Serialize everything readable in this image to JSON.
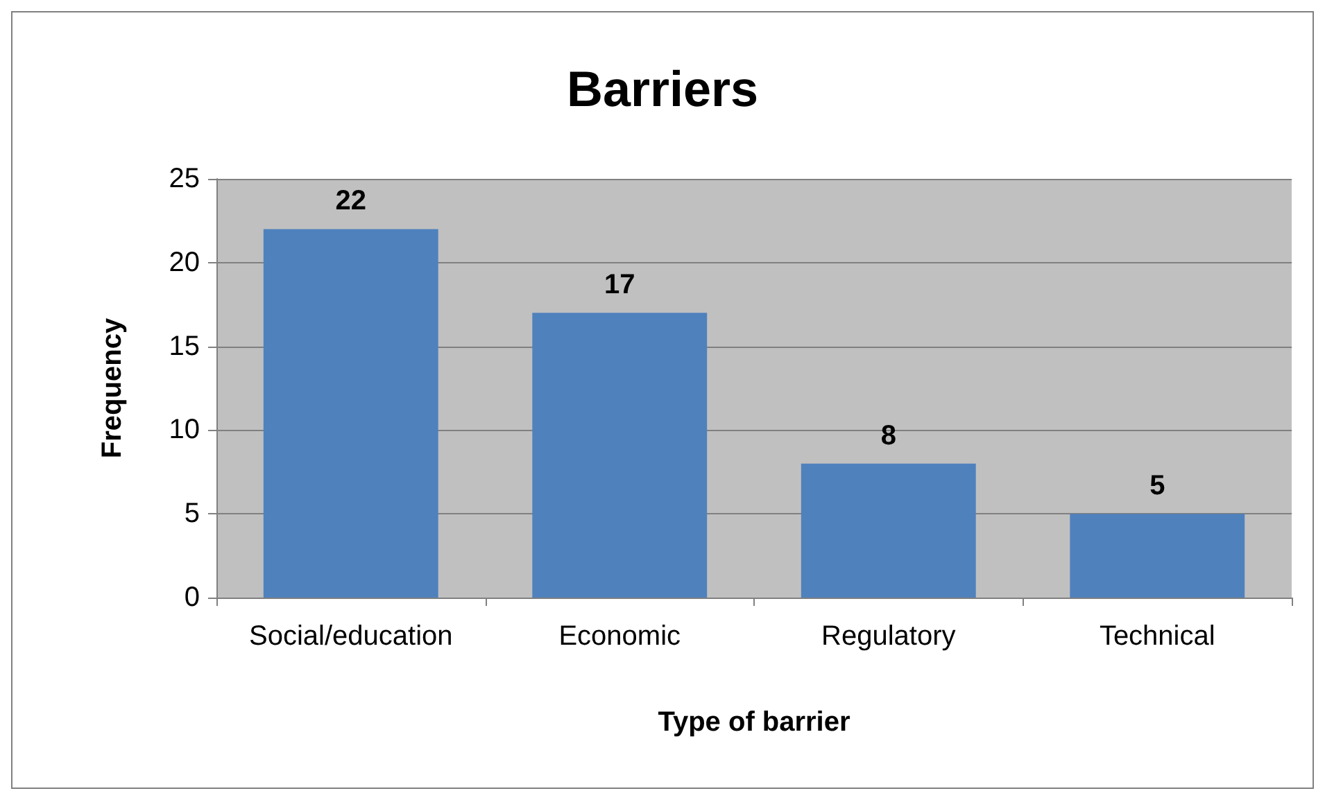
{
  "chart_data": {
    "type": "bar",
    "title": "Barriers",
    "xlabel": "Type of barrier",
    "ylabel": "Frequency",
    "categories": [
      "Social/education",
      "Economic",
      "Regulatory",
      "Technical"
    ],
    "values": [
      22,
      17,
      8,
      5
    ],
    "color": "#4f81bd",
    "ylim": [
      0,
      25
    ],
    "yticks": [
      0,
      5,
      10,
      15,
      20,
      25
    ],
    "grid": "y",
    "data_labels": true
  }
}
